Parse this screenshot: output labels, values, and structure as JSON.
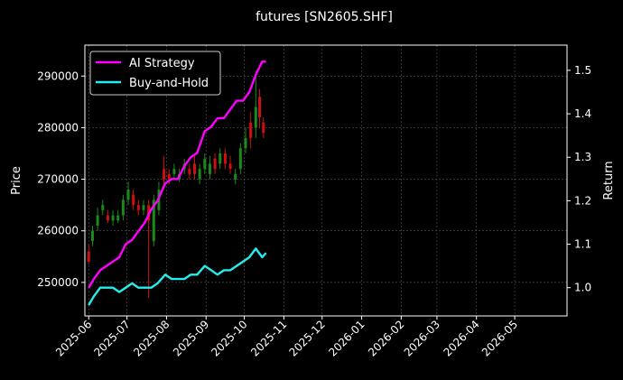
{
  "chart_data": {
    "type": "line",
    "title": "futures [SN2605.SHF]",
    "ylabel": "Price",
    "y2label": "Return",
    "ylim": [
      243500,
      296000
    ],
    "y2lim": [
      0.935,
      1.558
    ],
    "xlim": [
      "2025-05-29",
      "2026-06-11"
    ],
    "x_ticks": [
      "2025-06",
      "2025-07",
      "2025-08",
      "2025-09",
      "2025-10",
      "2025-11",
      "2025-12",
      "2026-01",
      "2026-02",
      "2026-03",
      "2026-04",
      "2026-05"
    ],
    "y_ticks": [
      250000,
      260000,
      270000,
      280000,
      290000
    ],
    "y2_ticks": [
      1.0,
      1.1,
      1.2,
      1.3,
      1.4,
      1.5
    ],
    "grid": true,
    "legend_placement": "top-left",
    "colors": {
      "background": "#000000",
      "ai_strategy": "#ff00ff",
      "buy_and_hold": "#22eeee",
      "candle_up": "#1a8a1a",
      "candle_down": "#d01010",
      "grid": "#555555"
    },
    "series": [
      {
        "name": "AI Strategy",
        "axis": "right",
        "x": [
          "2025-06-01",
          "2025-06-05",
          "2025-06-10",
          "2025-06-15",
          "2025-06-20",
          "2025-06-25",
          "2025-06-30",
          "2025-07-05",
          "2025-07-10",
          "2025-07-15",
          "2025-07-20",
          "2025-07-25",
          "2025-07-31",
          "2025-08-05",
          "2025-08-10",
          "2025-08-15",
          "2025-08-20",
          "2025-08-25",
          "2025-08-31",
          "2025-09-05",
          "2025-09-10",
          "2025-09-15",
          "2025-09-20",
          "2025-09-25",
          "2025-09-30",
          "2025-10-05",
          "2025-10-10",
          "2025-10-15",
          "2025-10-18"
        ],
        "values": [
          1.0,
          1.02,
          1.04,
          1.05,
          1.06,
          1.07,
          1.1,
          1.11,
          1.13,
          1.15,
          1.18,
          1.2,
          1.24,
          1.25,
          1.25,
          1.28,
          1.3,
          1.31,
          1.36,
          1.37,
          1.39,
          1.39,
          1.41,
          1.43,
          1.43,
          1.45,
          1.49,
          1.52,
          1.52
        ]
      },
      {
        "name": "Buy-and-Hold",
        "axis": "right",
        "x": [
          "2025-06-01",
          "2025-06-05",
          "2025-06-10",
          "2025-06-15",
          "2025-06-20",
          "2025-06-25",
          "2025-06-30",
          "2025-07-05",
          "2025-07-10",
          "2025-07-15",
          "2025-07-20",
          "2025-07-25",
          "2025-07-31",
          "2025-08-05",
          "2025-08-10",
          "2025-08-15",
          "2025-08-20",
          "2025-08-25",
          "2025-08-31",
          "2025-09-05",
          "2025-09-10",
          "2025-09-15",
          "2025-09-20",
          "2025-09-25",
          "2025-09-30",
          "2025-10-05",
          "2025-10-10",
          "2025-10-15",
          "2025-10-18"
        ],
        "values": [
          0.96,
          0.98,
          1.0,
          1.0,
          1.0,
          0.99,
          1.0,
          1.01,
          1.0,
          1.0,
          1.0,
          1.01,
          1.03,
          1.02,
          1.02,
          1.02,
          1.03,
          1.03,
          1.05,
          1.04,
          1.03,
          1.04,
          1.04,
          1.05,
          1.06,
          1.07,
          1.09,
          1.07,
          1.08
        ]
      }
    ],
    "candles": {
      "axis": "left",
      "x": [
        "2025-06-01",
        "2025-06-04",
        "2025-06-08",
        "2025-06-12",
        "2025-06-16",
        "2025-06-20",
        "2025-06-24",
        "2025-06-28",
        "2025-07-02",
        "2025-07-06",
        "2025-07-10",
        "2025-07-14",
        "2025-07-18",
        "2025-07-22",
        "2025-07-26",
        "2025-07-30",
        "2025-08-03",
        "2025-08-07",
        "2025-08-11",
        "2025-08-15",
        "2025-08-19",
        "2025-08-23",
        "2025-08-27",
        "2025-08-31",
        "2025-09-04",
        "2025-09-08",
        "2025-09-12",
        "2025-09-16",
        "2025-09-20",
        "2025-09-24",
        "2025-09-28",
        "2025-10-02",
        "2025-10-06",
        "2025-10-10",
        "2025-10-13",
        "2025-10-16"
      ],
      "open": [
        256000,
        258000,
        261000,
        264000,
        263000,
        262000,
        262000,
        263000,
        266000,
        267000,
        265000,
        264000,
        265000,
        258000,
        264000,
        272000,
        271000,
        271000,
        270000,
        272000,
        272000,
        273000,
        270000,
        272000,
        271000,
        274000,
        273000,
        275000,
        273000,
        270000,
        272000,
        276000,
        281000,
        280000,
        286000,
        281000
      ],
      "close": [
        254000,
        260000,
        263000,
        265000,
        262000,
        263000,
        263000,
        266000,
        268000,
        265000,
        264000,
        265000,
        262000,
        266000,
        268000,
        270000,
        270000,
        272000,
        271000,
        273000,
        271000,
        271000,
        272000,
        274000,
        273000,
        272000,
        275000,
        273000,
        272000,
        271000,
        276000,
        278000,
        278000,
        284000,
        282000,
        279000
      ],
      "low": [
        253500,
        257000,
        260000,
        263000,
        261500,
        261000,
        261500,
        262000,
        265000,
        264000,
        263000,
        263000,
        247000,
        257000,
        263000,
        269000,
        269000,
        270000,
        269500,
        271000,
        270000,
        270000,
        269000,
        271000,
        270000,
        271000,
        272000,
        272000,
        271000,
        269000,
        271000,
        275000,
        276000,
        278000,
        280000,
        278000
      ],
      "high": [
        257500,
        261000,
        264500,
        266000,
        264000,
        264000,
        264000,
        267000,
        269500,
        268000,
        266000,
        266000,
        266000,
        267000,
        269500,
        274500,
        272000,
        273000,
        272000,
        274000,
        273000,
        274500,
        273000,
        275000,
        274500,
        275000,
        276000,
        276000,
        274500,
        272000,
        277000,
        280000,
        283000,
        291000,
        287500,
        282000
      ]
    }
  }
}
